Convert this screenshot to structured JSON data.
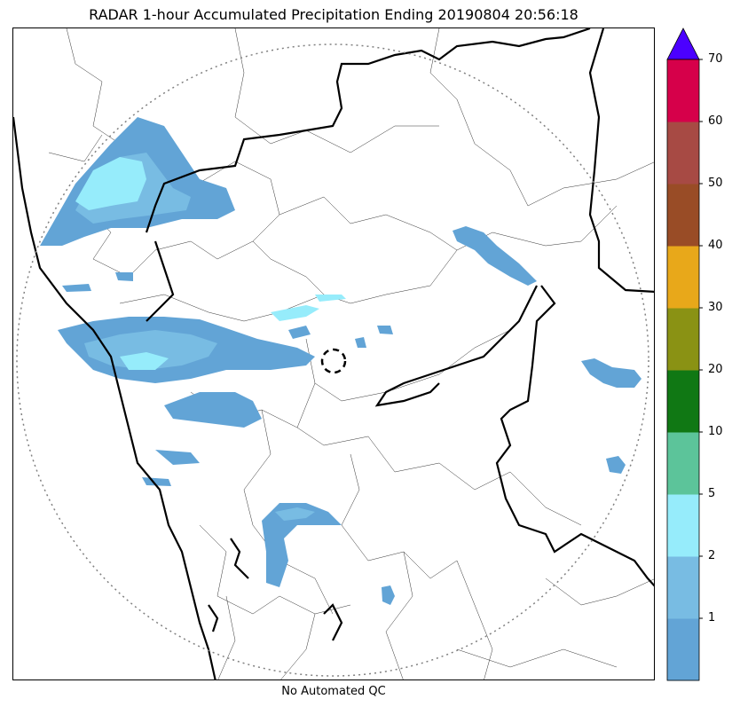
{
  "title": "RADAR 1-hour Accumulated Precipitation Ending 20190804 20:56:18",
  "footer": "No Automated QC",
  "colorbar": {
    "colors": [
      "#62a4d6",
      "#78bce3",
      "#96ecfb",
      "#5cc49a",
      "#107814",
      "#8a9214",
      "#e8a81a",
      "#994c26",
      "#a74a44",
      "#d6004a"
    ],
    "extend_color": "#4b00ff",
    "ticks": [
      "1",
      "2",
      "5",
      "10",
      "20",
      "30",
      "40",
      "50",
      "60",
      "70"
    ]
  }
}
